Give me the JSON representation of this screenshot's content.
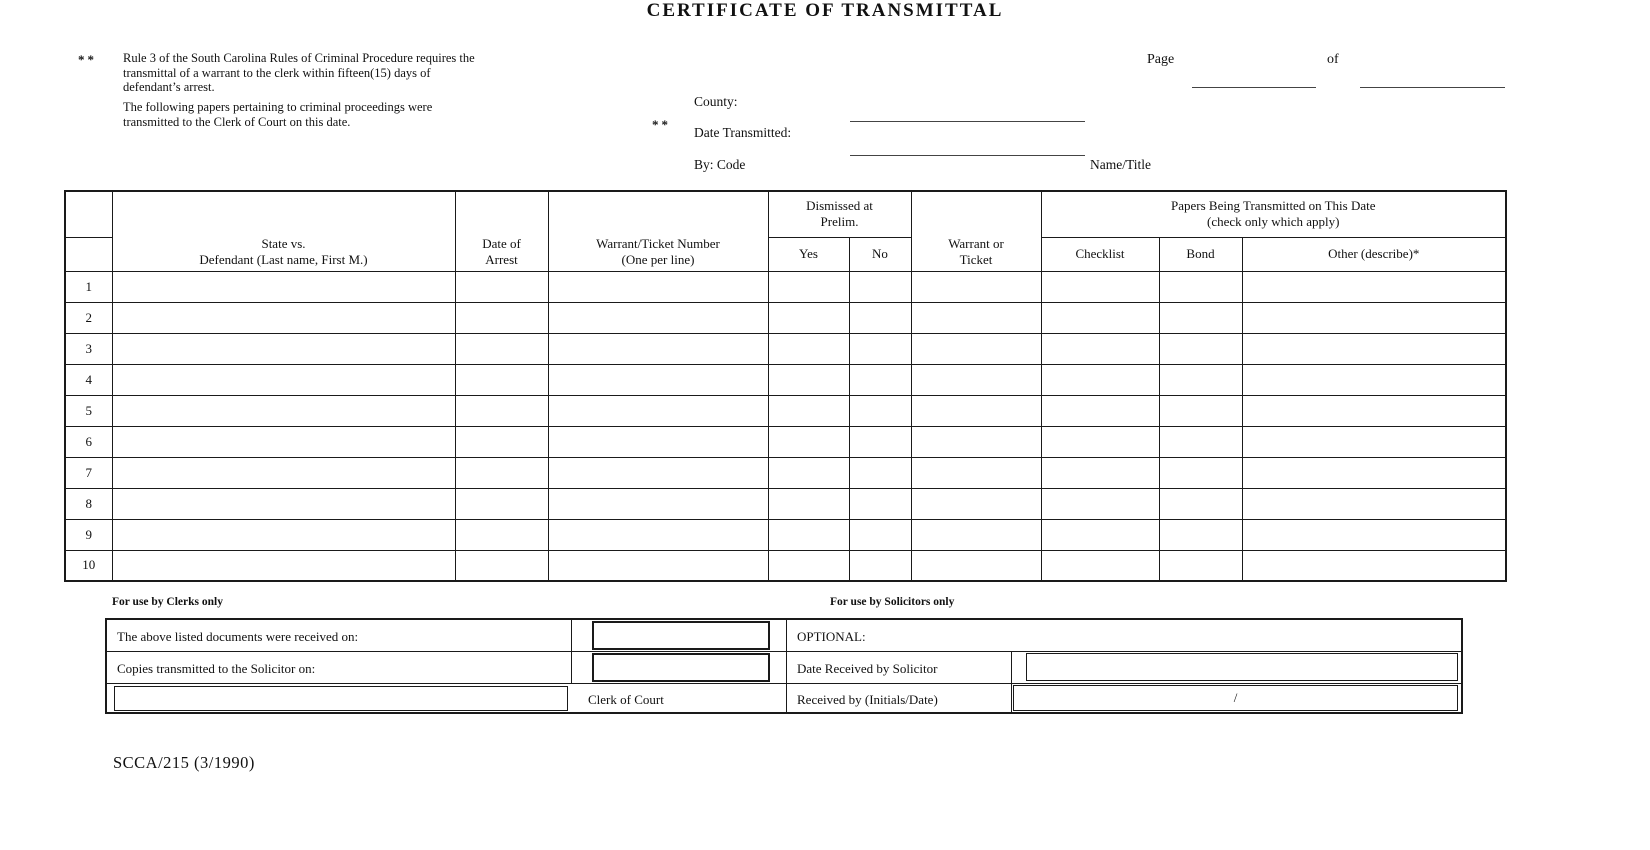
{
  "title": "CERTIFICATE OF TRANSMITTAL",
  "notes": {
    "asterisk_marker": "**",
    "rule_note_lines": [
      "Rule 3 of the South Carolina Rules of Criminal Procedure requires the",
      "transmittal of a warrant to the clerk within fifteen(15) days of",
      "defendant’s arrest."
    ],
    "transmittal_note_lines": [
      "The following papers pertaining to criminal proceedings were",
      "transmitted to the Clerk of Court on this date."
    ],
    "county_asterisk_marker": "**"
  },
  "page_field": {
    "label": "Page",
    "of_label": "of"
  },
  "transmittal_fields": {
    "county_label": "County:",
    "date_transmitted_label": "Date Transmitted:",
    "by_code_label": "By: Code",
    "name_title_label": "Name/Title"
  },
  "main_table": {
    "headers": {
      "defendant": "State vs.\nDefendant (Last name, First M.)",
      "date_of_arrest": "Date of\nArrest",
      "warrant_number": "Warrant/Ticket Number\n(One per line)",
      "dismissed_at_prelim": "Dismissed at\nPrelim.",
      "yes": "Yes",
      "no": "No",
      "warrant_or_ticket": "Warrant or\nTicket",
      "papers_transmitted": "Papers Being Transmitted on This Date\n(check only which apply)",
      "checklist": "Checklist",
      "bond": "Bond",
      "other": "Other (describe)*"
    },
    "row_numbers": [
      "1",
      "2",
      "3",
      "4",
      "5",
      "6",
      "7",
      "8",
      "9",
      "10"
    ]
  },
  "clerk_section": {
    "heading": "For use by Clerks only",
    "received_on_label": "The above listed documents were received on:",
    "copies_transmitted_label": "Copies transmitted to the Solicitor on:",
    "clerk_of_court_label": "Clerk of Court"
  },
  "solicitor_section": {
    "heading": "For use by Solicitors only",
    "optional_label": "OPTIONAL:",
    "date_received_label": "Date Received by Solicitor",
    "received_by_label": "Received by (Initials/Date)",
    "initials_date_separator": "/"
  },
  "footer": {
    "form_number": "SCCA/215 (3/1990)"
  }
}
